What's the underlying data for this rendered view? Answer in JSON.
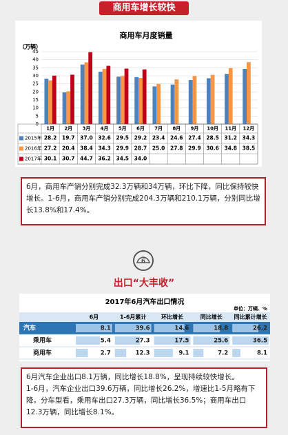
{
  "header": {
    "title": "商用车增长较快"
  },
  "chart_data": {
    "type": "bar",
    "title": "商用车月度销量",
    "y_label": "（万辆）",
    "categories": [
      "1月",
      "2月",
      "3月",
      "4月",
      "5月",
      "6月",
      "7月",
      "8月",
      "9月",
      "10月",
      "11月",
      "12月"
    ],
    "series": [
      {
        "name": "2015年",
        "color": "#4f81bd",
        "values": [
          28.2,
          19.7,
          37.0,
          32.6,
          29.5,
          29.2,
          23.4,
          24.6,
          27.4,
          28.5,
          31.2,
          34.3
        ],
        "value_labels": [
          "28.2",
          "19.7",
          "37.0",
          "32.6",
          "29.5",
          "29.2",
          "23.4",
          "24.6",
          "27.4",
          "28.5",
          "31.2",
          "34.3"
        ]
      },
      {
        "name": "2016年",
        "color": "#f79646",
        "values": [
          27.2,
          20.4,
          38.4,
          34.3,
          29.9,
          28.7,
          25.0,
          27.8,
          29.9,
          30.6,
          34.8,
          38.5
        ],
        "value_labels": [
          "27.2",
          "20.4",
          "38.4",
          "34.3",
          "29.9",
          "28.7",
          "25.0",
          "27.8",
          "29.9",
          "30.6",
          "34.8",
          "38.5"
        ]
      },
      {
        "name": "2017年",
        "color": "#c0001a",
        "values": [
          30.1,
          30.7,
          44.7,
          36.2,
          34.5,
          34.0,
          null,
          null,
          null,
          null,
          null,
          null
        ],
        "value_labels": [
          "30.1",
          "30.7",
          "44.7",
          "36.2",
          "34.5",
          "34.0",
          null,
          null,
          null,
          null,
          null,
          null
        ]
      }
    ],
    "ylim": [
      0,
      45
    ],
    "yticks": [
      0,
      5,
      10,
      15,
      20,
      25,
      30,
      35,
      40,
      45
    ],
    "grid": true
  },
  "summary1": "6月，商用车产销分别完成32.3万辆和34万辆，环比下降，同比保持较快增长。1-6月，商用车产销分别完成204.3万辆和210.1万辆，分别同比增长13.8%和17.4%。",
  "icon_label": "6",
  "section2": {
    "title": "出口“大丰收”"
  },
  "export_table": {
    "title": "2017年6月汽车出口情况",
    "unit": "单位：万辆、%",
    "columns": [
      "6月",
      "1-6月累计",
      "环比增长",
      "同比增长",
      "同比累计增长"
    ],
    "rows": [
      {
        "label": "汽车",
        "values": [
          8.1,
          39.6,
          14.6,
          18.8,
          26.2
        ]
      },
      {
        "label": "乘用车",
        "values": [
          5.4,
          27.3,
          17.5,
          25.6,
          36.5
        ]
      },
      {
        "label": "商用车",
        "values": [
          2.7,
          12.3,
          9.1,
          7.2,
          8.1
        ]
      }
    ]
  },
  "summary2": [
    "6月汽车企业出口8.1万辆，同比增长18.8%，呈现持续较快增长。",
    "1-6月，汽车企业出口39.6万辆，同比增长26.2%，增速比1-5月略有下降。分车型看，乘用车出口27.3万辆，同比增长36.5%；商用车出口12.3万辆，同比增长8.1%。"
  ]
}
